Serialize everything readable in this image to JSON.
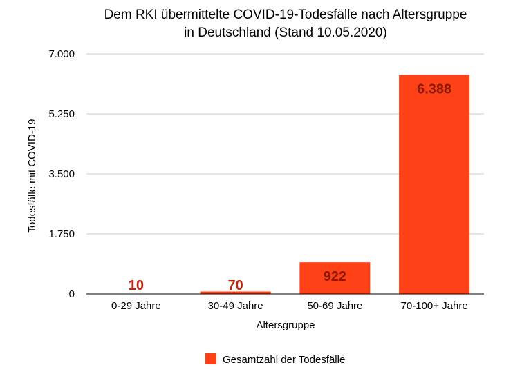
{
  "chart_data": {
    "type": "bar",
    "title_lines": [
      "Dem RKI übermittelte COVID-19-Todesfälle nach Altersgruppe",
      "in Deutschland (Stand 10.05.2020)"
    ],
    "categories": [
      "0-29 Jahre",
      "30-49 Jahre",
      "50-69 Jahre",
      "70-100+ Jahre"
    ],
    "series": [
      {
        "name": "Gesamtzahl der Todesfälle",
        "values": [
          10,
          70,
          922,
          6388
        ],
        "value_labels": [
          "10",
          "70",
          "922",
          "6.388"
        ],
        "color": "#ff4117"
      }
    ],
    "xlabel": "Altersgruppe",
    "ylabel": "Todesfälle mit COVID-19",
    "ylim": [
      0,
      7000
    ],
    "yticks": [
      0,
      1750,
      3500,
      5250,
      7000
    ],
    "ytick_labels": [
      "0",
      "1.750",
      "3.500",
      "5.250",
      "7.000"
    ],
    "grid": true,
    "legend_position": "bottom-center",
    "colors": {
      "bar": "#ff4117",
      "label_outside": "#c2230c",
      "label_inside": "#8a1a08",
      "gridline": "#cccccc",
      "axis": "#000000"
    }
  }
}
